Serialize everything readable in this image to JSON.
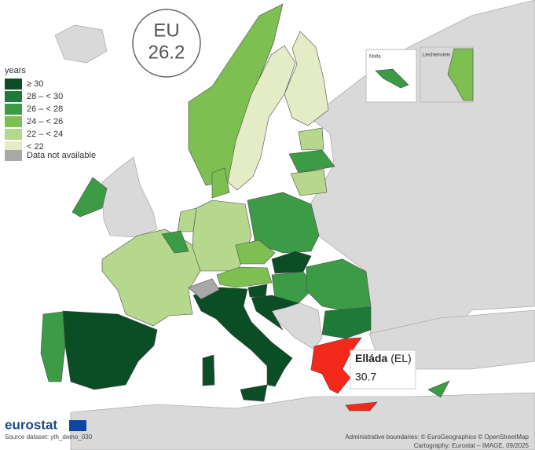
{
  "badge": {
    "label": "EU",
    "value": 26.2
  },
  "legend": {
    "title": "years",
    "items": [
      {
        "label": "≥ 30",
        "color": "#0b4d25"
      },
      {
        "label": "28 – < 30",
        "color": "#1f7a37"
      },
      {
        "label": "26 – < 28",
        "color": "#3b9c45"
      },
      {
        "label": "24 – < 26",
        "color": "#7ebf52"
      },
      {
        "label": "22 – < 24",
        "color": "#b6d88d"
      },
      {
        "label": "< 22",
        "color": "#e3ecc4"
      }
    ],
    "na": {
      "label": "Data not available",
      "color": "#a8a8a8"
    }
  },
  "insets": {
    "malta": "Malta",
    "liechtenstein": "Liechtenstein"
  },
  "tooltip": {
    "name": "Elláda",
    "code": "(EL)",
    "value": 30.7,
    "highlight_color": "#f5281c"
  },
  "footer": {
    "logo": "eurostat",
    "source": "Source dataset: yth_demo_030",
    "boundaries": "Administrative boundaries: © EuroGeographics © OpenStreetMap",
    "cartography": "Cartography: Eurostat – IMAGE, 09/2025"
  }
}
